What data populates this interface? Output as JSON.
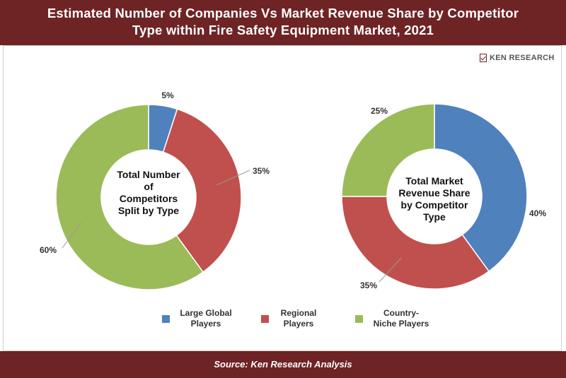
{
  "header": {
    "title_line1": "Estimated Number of Companies Vs Market Revenue Share by Competitor",
    "title_line2": "Type within Fire Safety Equipment Market, 2021"
  },
  "logo": {
    "text": "KEN RESEARCH"
  },
  "chart_data": [
    {
      "type": "donut",
      "center_label": [
        "Total Number",
        "of",
        "Competitors",
        "Split by Type"
      ],
      "categories": [
        "Large Global Players",
        "Regional Players",
        "Country-Niche Players"
      ],
      "values": [
        5,
        35,
        60
      ],
      "labels": [
        "5%",
        "35%",
        "60%"
      ],
      "colors": [
        "#4f81bd",
        "#c0504d",
        "#9bbb59"
      ]
    },
    {
      "type": "donut",
      "center_label": [
        "Total Market",
        "Revenue Share",
        "by Competitor",
        "Type"
      ],
      "categories": [
        "Large Global Players",
        "Regional Players",
        "Country-Niche Players"
      ],
      "values": [
        40,
        35,
        25
      ],
      "labels": [
        "40%",
        "35%",
        "25%"
      ],
      "colors": [
        "#4f81bd",
        "#c0504d",
        "#9bbb59"
      ]
    }
  ],
  "legend": [
    {
      "line1": "Large Global",
      "line2": "Players",
      "color": "#4f81bd"
    },
    {
      "line1": "Regional",
      "line2": "Players",
      "color": "#c0504d"
    },
    {
      "line1": "Country-",
      "line2": "Niche Players",
      "color": "#9bbb59"
    }
  ],
  "footer": {
    "source": "Source: Ken Research Analysis"
  }
}
